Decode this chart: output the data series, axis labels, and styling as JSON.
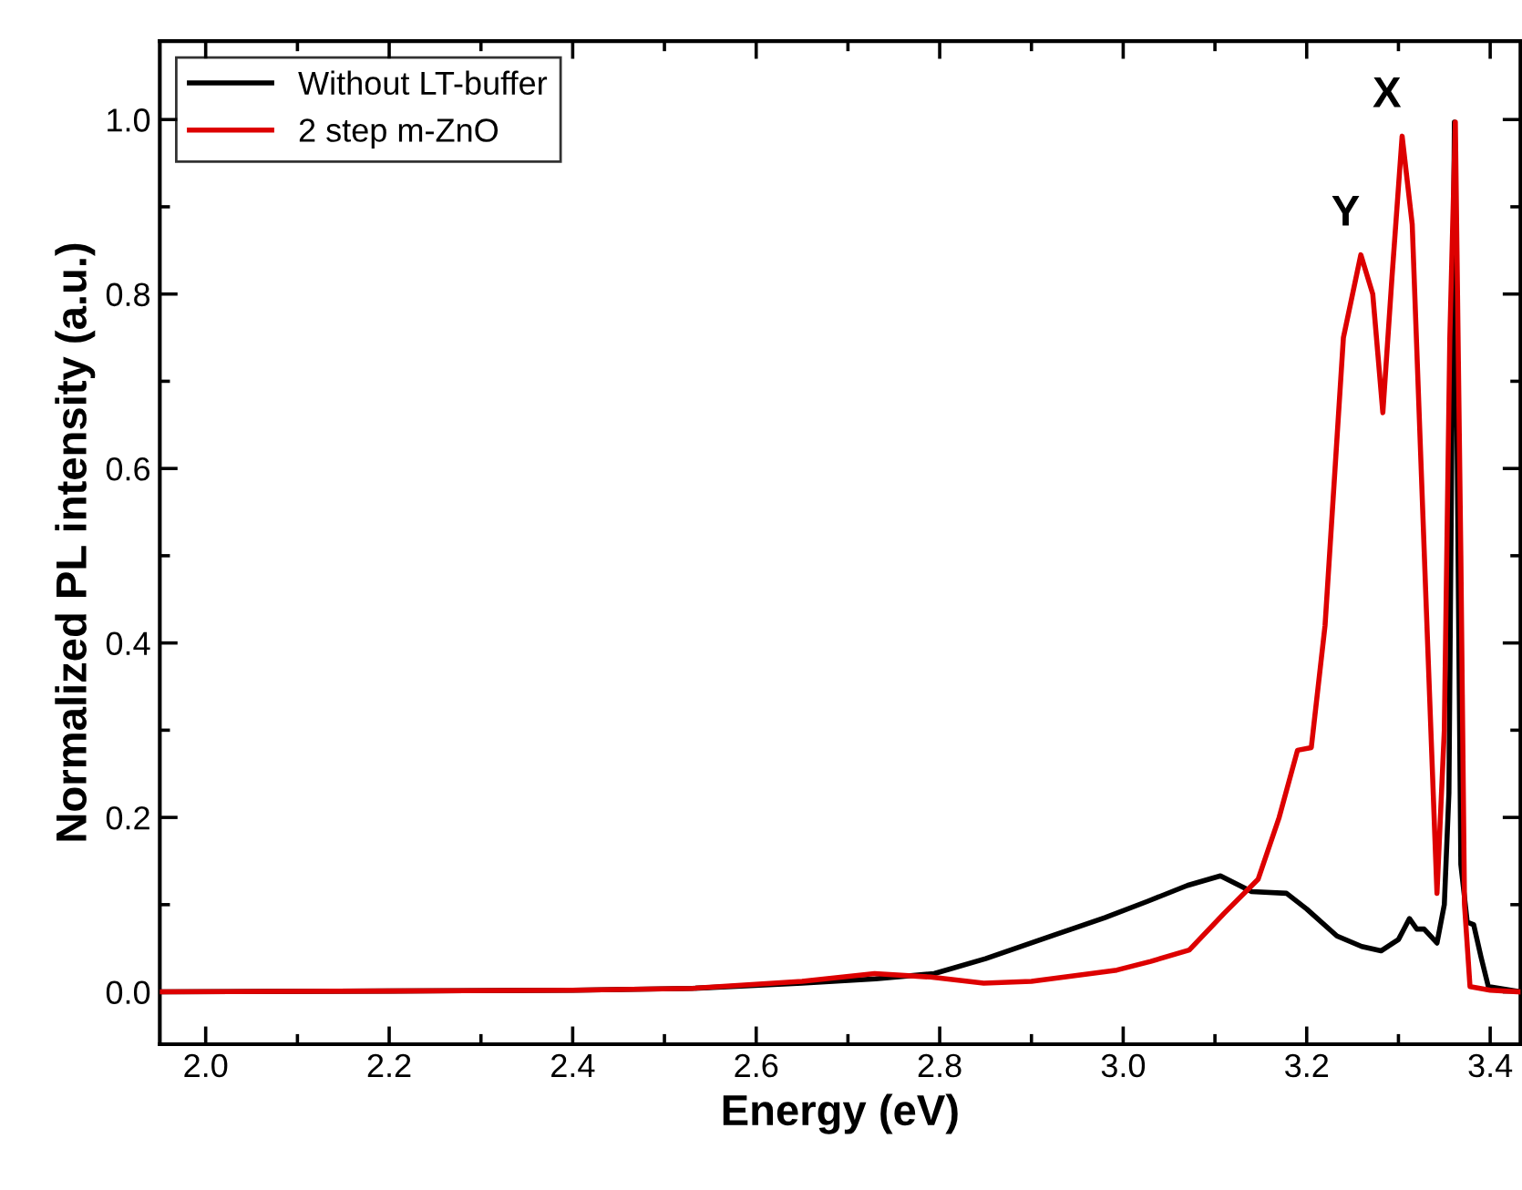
{
  "chart_data": {
    "type": "line",
    "xlabel": "Energy (eV)",
    "ylabel": "Normalized PL intensity (a.u.)",
    "xlim": [
      1.95,
      3.433
    ],
    "ylim": [
      -0.06,
      1.09
    ],
    "xticks": [
      {
        "value": 2,
        "label": "2.0"
      },
      2.2,
      2.4,
      2.6,
      2.8,
      {
        "value": 3,
        "label": "3.0"
      },
      3.2,
      3.4
    ],
    "yticks": [
      {
        "value": 0,
        "label": "0.0"
      },
      0.2,
      0.4,
      0.6,
      0.8,
      {
        "value": 1,
        "label": "1.0"
      }
    ],
    "grid": false,
    "legend": "top left",
    "line_style": "solid",
    "marker": "none",
    "series": [
      {
        "name": "Without LT-buffer",
        "color": "#000000",
        "x": [
          1.95,
          2.2,
          2.4,
          2.53,
          2.65,
          2.73,
          2.794,
          2.85,
          2.927,
          2.98,
          3.027,
          3.07,
          3.106,
          3.14,
          3.178,
          3.2,
          3.233,
          3.26,
          3.281,
          3.3,
          3.312,
          3.32,
          3.328,
          3.342,
          3.35,
          3.355,
          3.361,
          3.365,
          3.368,
          3.375,
          3.382,
          3.39,
          3.398,
          3.433
        ],
        "values": [
          0.0,
          0.001,
          0.002,
          0.004,
          0.01,
          0.015,
          0.021,
          0.038,
          0.066,
          0.085,
          0.104,
          0.122,
          0.133,
          0.115,
          0.113,
          0.095,
          0.064,
          0.052,
          0.047,
          0.06,
          0.084,
          0.072,
          0.072,
          0.056,
          0.1,
          0.228,
          0.997,
          0.5,
          0.146,
          0.08,
          0.077,
          0.04,
          0.006,
          0.0
        ]
      },
      {
        "name": "2 step m-ZnO",
        "color": "#dd0000",
        "x": [
          1.95,
          2.2,
          2.4,
          2.53,
          2.65,
          2.729,
          2.79,
          2.848,
          2.9,
          2.993,
          3.03,
          3.072,
          3.11,
          3.147,
          3.17,
          3.19,
          3.205,
          3.22,
          3.24,
          3.259,
          3.272,
          3.283,
          3.293,
          3.304,
          3.315,
          3.33,
          3.342,
          3.35,
          3.356,
          3.362,
          3.368,
          3.372,
          3.378,
          3.4,
          3.433
        ],
        "values": [
          0.0,
          0.001,
          0.002,
          0.004,
          0.012,
          0.021,
          0.017,
          0.01,
          0.012,
          0.025,
          0.035,
          0.048,
          0.09,
          0.129,
          0.2,
          0.277,
          0.28,
          0.42,
          0.75,
          0.845,
          0.8,
          0.664,
          0.82,
          0.981,
          0.88,
          0.45,
          0.113,
          0.3,
          0.75,
          0.997,
          0.5,
          0.1,
          0.006,
          0.002,
          0.0
        ]
      }
    ],
    "annotations": [
      {
        "text": "X",
        "x": 3.304,
        "y": 0.981
      },
      {
        "text": "Y",
        "x": 3.259,
        "y": 0.845
      }
    ]
  }
}
